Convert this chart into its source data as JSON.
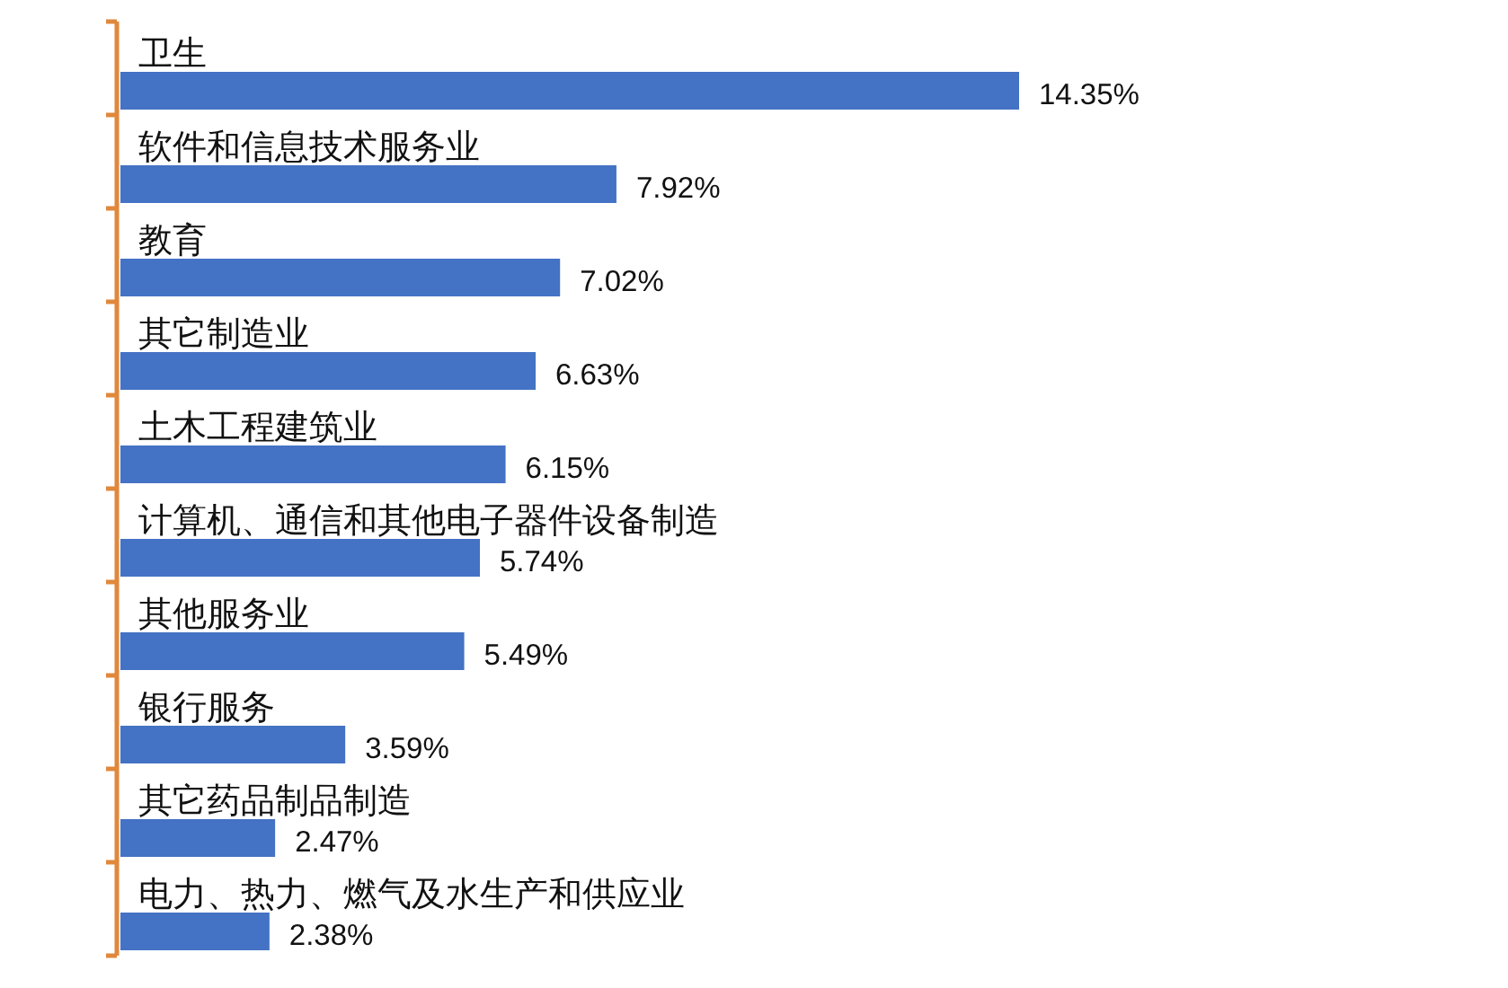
{
  "chart_data": {
    "type": "bar",
    "orientation": "horizontal",
    "categories": [
      "卫生",
      "软件和信息技术服务业",
      "教育",
      "其它制造业",
      "土木工程建筑业",
      "计算机、通信和其他电子器件设备制造",
      "其他服务业",
      "银行服务",
      "其它药品制品制造",
      "电力、热力、燃气及水生产和供应业"
    ],
    "values": [
      14.35,
      7.92,
      7.02,
      6.63,
      6.15,
      5.74,
      5.49,
      3.59,
      2.47,
      2.38
    ],
    "value_labels": [
      "14.35%",
      "7.92%",
      "7.02%",
      "6.63%",
      "6.15%",
      "5.74%",
      "5.49%",
      "3.59%",
      "2.47%",
      "2.38%"
    ],
    "color": "#4472c4"
  }
}
